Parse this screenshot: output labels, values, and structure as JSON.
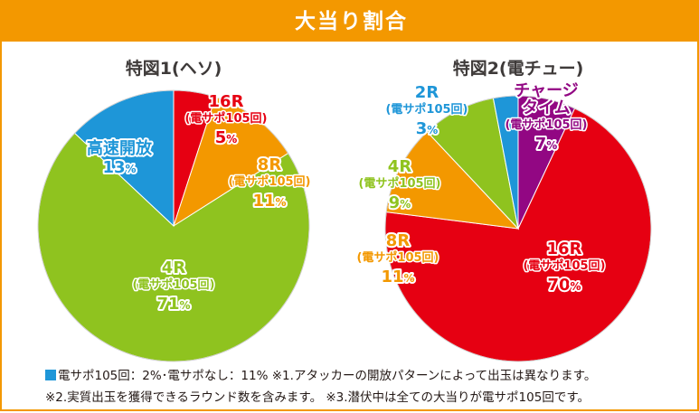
{
  "header": {
    "title": "大当り割合"
  },
  "colors": {
    "accent": "#f39800",
    "blue": "#1e96d8",
    "red": "#e60012",
    "orange": "#f39800",
    "green": "#8fc31f",
    "purple": "#920783"
  },
  "chart_data": [
    {
      "type": "pie",
      "title": "特図1(ヘソ)",
      "slices": [
        {
          "name": "16R",
          "sub": "(電サポ105回)",
          "value": 5,
          "color": "#e60012"
        },
        {
          "name": "8R",
          "sub": "(電サポ105回)",
          "value": 11,
          "color": "#f39800"
        },
        {
          "name": "4R",
          "sub": "(電サポ105回)",
          "value": 71,
          "color": "#8fc31f"
        },
        {
          "name": "高速開放",
          "sub": "",
          "value": 13,
          "color": "#1e96d8"
        }
      ]
    },
    {
      "type": "pie",
      "title": "特図2(電チュー)",
      "slices": [
        {
          "name": "16R",
          "sub": "(電サポ105回)",
          "value": 70,
          "color": "#e60012"
        },
        {
          "name": "8R",
          "sub": "(電サポ105回)",
          "value": 11,
          "color": "#f39800"
        },
        {
          "name": "4R",
          "sub": "(電サポ105回)",
          "value": 9,
          "color": "#8fc31f"
        },
        {
          "name": "2R",
          "sub": "(電サポ105回)",
          "value": 3,
          "color": "#1e96d8"
        },
        {
          "name": "チャージ\nタイム",
          "sub": "(電サポ105回)",
          "value": 7,
          "color": "#920783"
        }
      ]
    }
  ],
  "footnotes": {
    "line1_legend": "電サポ105回：2%･電サポなし：11%",
    "line1_note": "※1.アタッカーの開放パターンによって出玉は異なります。",
    "line2": "※2.実質出玉を獲得できるラウンド数を含みます。 ※3.潜伏中は全ての大当りが電サポ105回です。"
  }
}
